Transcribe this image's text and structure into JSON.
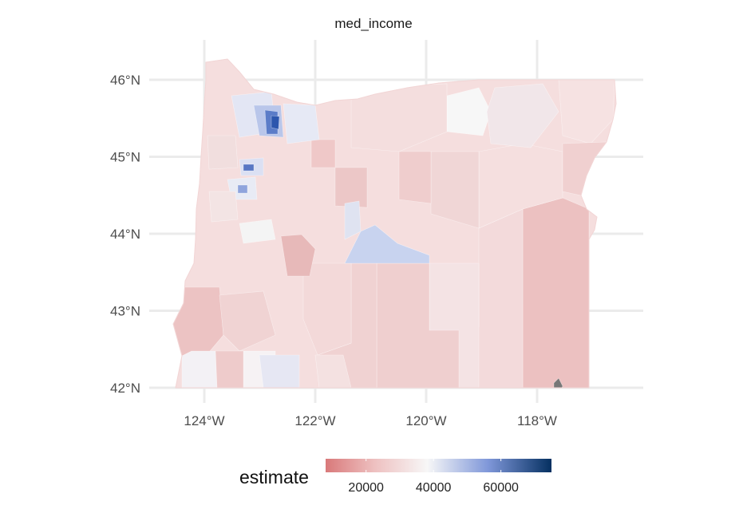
{
  "facet_title": "med_income",
  "legend": {
    "title": "estimate",
    "labels": [
      "20000",
      "40000",
      "60000"
    ],
    "values": [
      20000,
      40000,
      60000
    ],
    "range": [
      8000,
      75000
    ],
    "colors": {
      "low": "#d9797a",
      "mid": "#f7f7f7",
      "high": "#053061"
    }
  },
  "axes": {
    "x_ticks": [
      {
        "label": "124°W",
        "value": -124
      },
      {
        "label": "122°W",
        "value": -122
      },
      {
        "label": "120°W",
        "value": -120
      },
      {
        "label": "118°W",
        "value": -118
      }
    ],
    "y_ticks": [
      {
        "label": "46°N",
        "value": 46
      },
      {
        "label": "45°N",
        "value": 45
      },
      {
        "label": "44°N",
        "value": 44
      },
      {
        "label": "43°N",
        "value": 43
      },
      {
        "label": "42°N",
        "value": 42
      }
    ]
  },
  "colors": {
    "grid": "#ebebeb",
    "tick_text": "#4d4d4d"
  }
}
